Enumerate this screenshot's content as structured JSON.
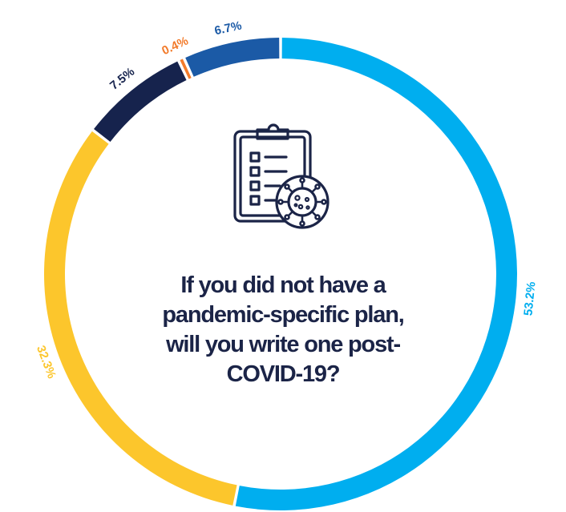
{
  "chart_data": {
    "type": "pie",
    "donut": true,
    "title": "If you did not have a pandemic-specific plan, will you write one post-COVID-19?",
    "slices": [
      {
        "value": 53.2,
        "label": "53.2%",
        "color": "#00aeef"
      },
      {
        "value": 32.3,
        "label": "32.3%",
        "color": "#fcc62c"
      },
      {
        "value": 7.5,
        "label": "7.5%",
        "color": "#16234d"
      },
      {
        "value": 0.4,
        "label": "0.4%",
        "color": "#f27b2b"
      },
      {
        "value": 6.7,
        "label": "6.7%",
        "color": "#1b5aa6"
      }
    ],
    "start": "top",
    "direction": "clockwise",
    "legend": "none"
  },
  "center_icon": "clipboard-virus-icon",
  "colors": {
    "title": "#1b2447",
    "icon": "#1b2447",
    "background": "#ffffff"
  }
}
